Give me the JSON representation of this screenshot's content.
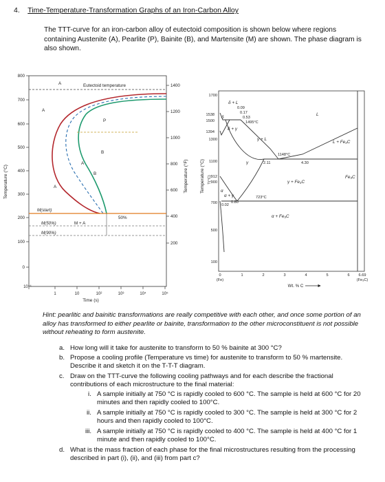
{
  "question": {
    "number": "4.",
    "title": "Time-Temperature-Transformation Graphs of an Iron-Carbon Alloy",
    "intro": "The TTT-curve for an iron-carbon alloy of eutectoid composition is shown below where regions containing Austenite (A), Pearlite (P), Bainite (B), and Martensite (M) are shown. The phase diagram is also shown."
  },
  "ttt_chart": {
    "ylabel": "Temperature (°C)",
    "ylabel_right": "Temperature (°F)",
    "xlabel": "Time (s)",
    "eutectoid_label": "Eutectoid temperature",
    "yticks": [
      "800",
      "700",
      "600",
      "500",
      "400",
      "300",
      "200",
      "100",
      "0"
    ],
    "yticks_f": [
      "1400",
      "1200",
      "1000",
      "800",
      "600",
      "400",
      "200"
    ],
    "xticks": [
      "10⁻¹",
      "1",
      "10",
      "10²",
      "10³",
      "10⁴",
      "10⁵"
    ],
    "region_labels": {
      "a_top": "A",
      "a_left": "A",
      "a_mid": "A",
      "p": "P",
      "b": "B",
      "a_arrow": "A",
      "b_arrow": "B",
      "ma": "M + A",
      "pct": "50%",
      "mstart": "M(start)",
      "m50": "M(50%)",
      "m90": "M(90%)"
    }
  },
  "phase_chart": {
    "ylabel": "Temperature (°C)",
    "ylabel_axis": "T(°C)",
    "xlabel": "Wt. % C",
    "yticks": [
      "1700",
      "1538",
      "1500",
      "1394",
      "1300",
      "1100",
      "912",
      "900",
      "700",
      "500",
      "100"
    ],
    "xticks": [
      "0",
      "1",
      "2",
      "3",
      "4",
      "5",
      "6",
      "6.69"
    ],
    "xtick_fe": "(Fe)",
    "xtick_fe3c": "(Fe₃C)",
    "labels": {
      "c009": "0.09",
      "c017": "0.17",
      "c053": "0.53",
      "t1495": "1495°C",
      "t1148": "1148°C",
      "c211": "2.11",
      "c430": "4.30",
      "t723": "723°C",
      "c002": "0.02",
      "c080": "0.80",
      "l": "L",
      "dl": "δ + L",
      "d": "δ",
      "dg": "δ + γ",
      "gl": "γ + L",
      "g": "γ",
      "a": "α",
      "ag": "α + γ",
      "gfe3c": "γ + Fe₃C",
      "afe3c": "α + Fe₃C",
      "lfe3c": "L + Fe₃C",
      "fe3c": "Fe₃C"
    }
  },
  "hint": "Hint: pearlitic and bainitic transformations are really competitive with each other, and once some portion of an alloy has transformed to either pearlite or bainite, transformation to the other microconstituent is not possible without reheating to form austenite.",
  "parts": [
    {
      "label": "a.",
      "text": "How long will it take for austenite to transform to 50 % bainite at 300 °C?"
    },
    {
      "label": "b.",
      "text": "Propose a cooling profile (Temperature vs time) for austenite to transform to 50 % martensite. Describe it and sketch it on the T-T-T diagram."
    },
    {
      "label": "c.",
      "text": "Draw on the TTT-curve the following cooling pathways and for each describe the fractional contributions of each microstructure to the final material:"
    },
    {
      "label": "d.",
      "text": "What is the mass fraction of each phase for the final microstructures resulting from the processing described in part (i), (ii), and (iii) from part c?"
    }
  ],
  "subparts": [
    {
      "label": "i.",
      "text": "A sample initially at 750 °C is rapidly cooled to 600 °C. The sample is held at 600 °C for 20 minutes and then rapidly cooled to 100°C."
    },
    {
      "label": "ii.",
      "text": "A sample initially at 750 °C is rapidly cooled to 300 °C. The sample is held at 300 °C for 2 hours and then rapidly cooled to 100°C."
    },
    {
      "label": "iii.",
      "text": "A sample initially at 750 °C is rapidly cooled to 400 °C. The sample is held at 400 °C for 1 minute and then rapidly cooled to 100°C."
    }
  ]
}
